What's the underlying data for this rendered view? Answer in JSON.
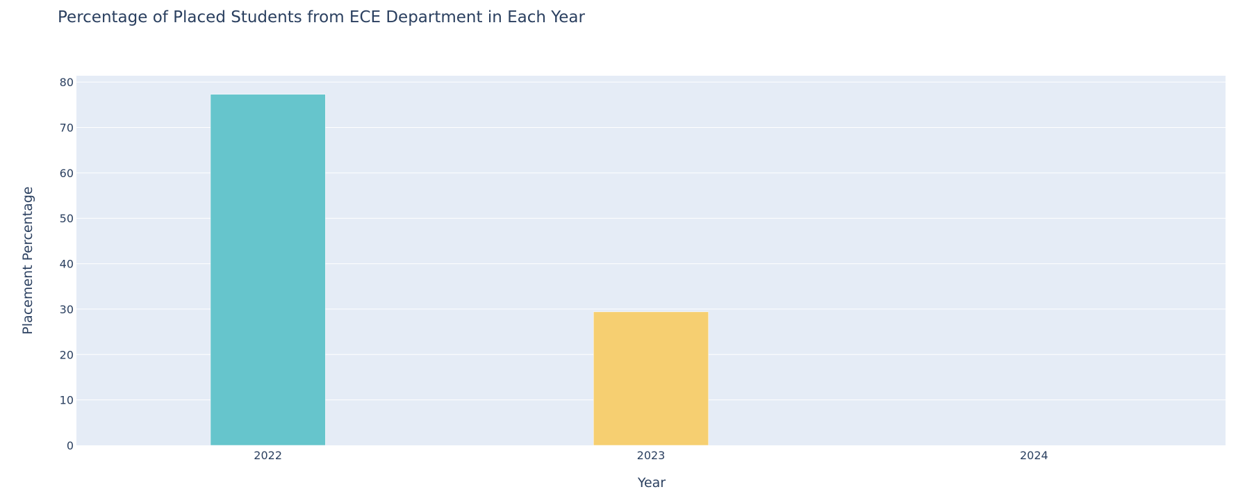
{
  "chart_data": {
    "type": "bar",
    "title": "Percentage of Placed Students from ECE Department in Each Year",
    "xlabel": "Year",
    "ylabel": "Placement Percentage",
    "categories": [
      "2022",
      "2023",
      "2024"
    ],
    "values": [
      77.3,
      29.4,
      0
    ],
    "bar_colors": [
      "#66c5cc",
      "#f6cf71",
      "#f89c74"
    ],
    "ylim": [
      0,
      81.4
    ],
    "yticks": [
      0,
      10,
      20,
      30,
      40,
      50,
      60,
      70,
      80
    ],
    "grid": true,
    "legend": "none",
    "plot_background": "#e5ecf6",
    "grid_color": "#ffffff",
    "text_color": "#2a3f5f"
  }
}
